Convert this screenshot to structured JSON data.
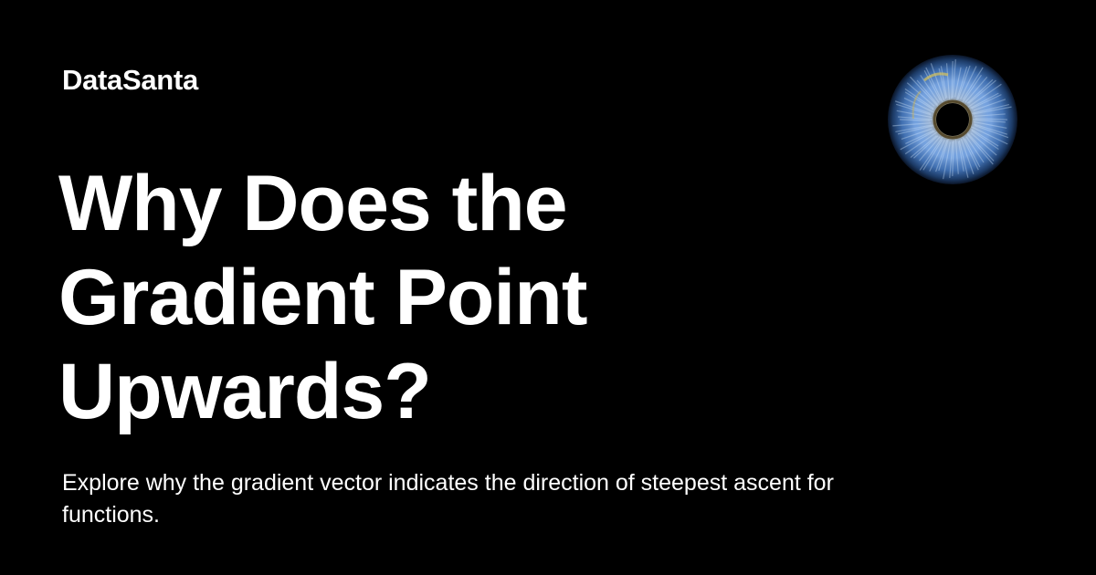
{
  "brand": {
    "name": "DataSanta"
  },
  "title": {
    "lines": [
      "Why Does the",
      "Gradient Point",
      "Upwards?"
    ]
  },
  "subtitle": "Explore why the gradient vector indicates the direction of steepest ascent for functions.",
  "icons": {
    "logo": "eye-iris-icon"
  },
  "colors": {
    "background": "#000000",
    "text": "#ffffff",
    "iris_blue": "#5a8fd6",
    "iris_gold": "#c9b35a"
  }
}
